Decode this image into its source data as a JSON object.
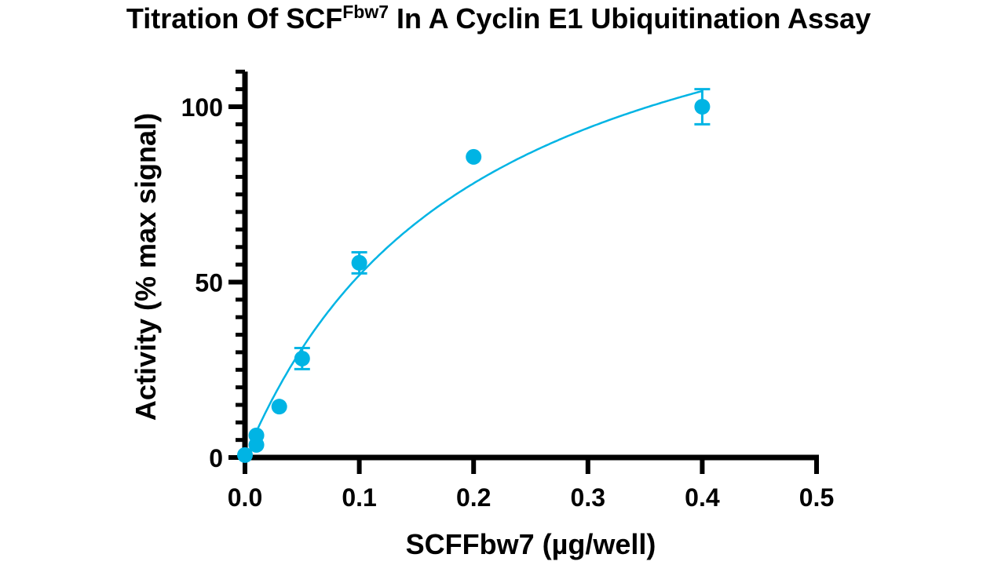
{
  "chart_data": {
    "type": "scatter",
    "title": "Titration Of SCF",
    "title_superscript": "Fbw7",
    "title_suffix": " In A Cyclin E1 Ubiquitination Assay",
    "xlabel": "SCFFbw7 (µg/well)",
    "ylabel": "Activity (% max signal)",
    "xlim": [
      0,
      0.5
    ],
    "ylim": [
      0,
      110
    ],
    "x_ticks": [
      "0.0",
      "0.1",
      "0.2",
      "0.3",
      "0.4",
      "0.5"
    ],
    "x_tick_values": [
      0,
      0.1,
      0.2,
      0.3,
      0.4,
      0.5
    ],
    "y_ticks": [
      "0",
      "50",
      "100"
    ],
    "y_tick_values": [
      0,
      50,
      100
    ],
    "y_minor_step": 5,
    "grid": false,
    "color": "#00b4e4",
    "points": [
      {
        "x": 0.0,
        "y": 0.7
      },
      {
        "x": 0.01,
        "y": 3.6
      },
      {
        "x": 0.01,
        "y": 6.3
      },
      {
        "x": 0.03,
        "y": 14.5
      },
      {
        "x": 0.05,
        "y": 28.2,
        "err": 3
      },
      {
        "x": 0.1,
        "y": 55.5,
        "err": 3
      },
      {
        "x": 0.2,
        "y": 85.7
      },
      {
        "x": 0.4,
        "y": 100,
        "err": 5
      }
    ],
    "fit": {
      "model": "hyperbola",
      "vmax": 157.5,
      "k": 0.203,
      "x_range": [
        0.01,
        0.4
      ]
    }
  }
}
